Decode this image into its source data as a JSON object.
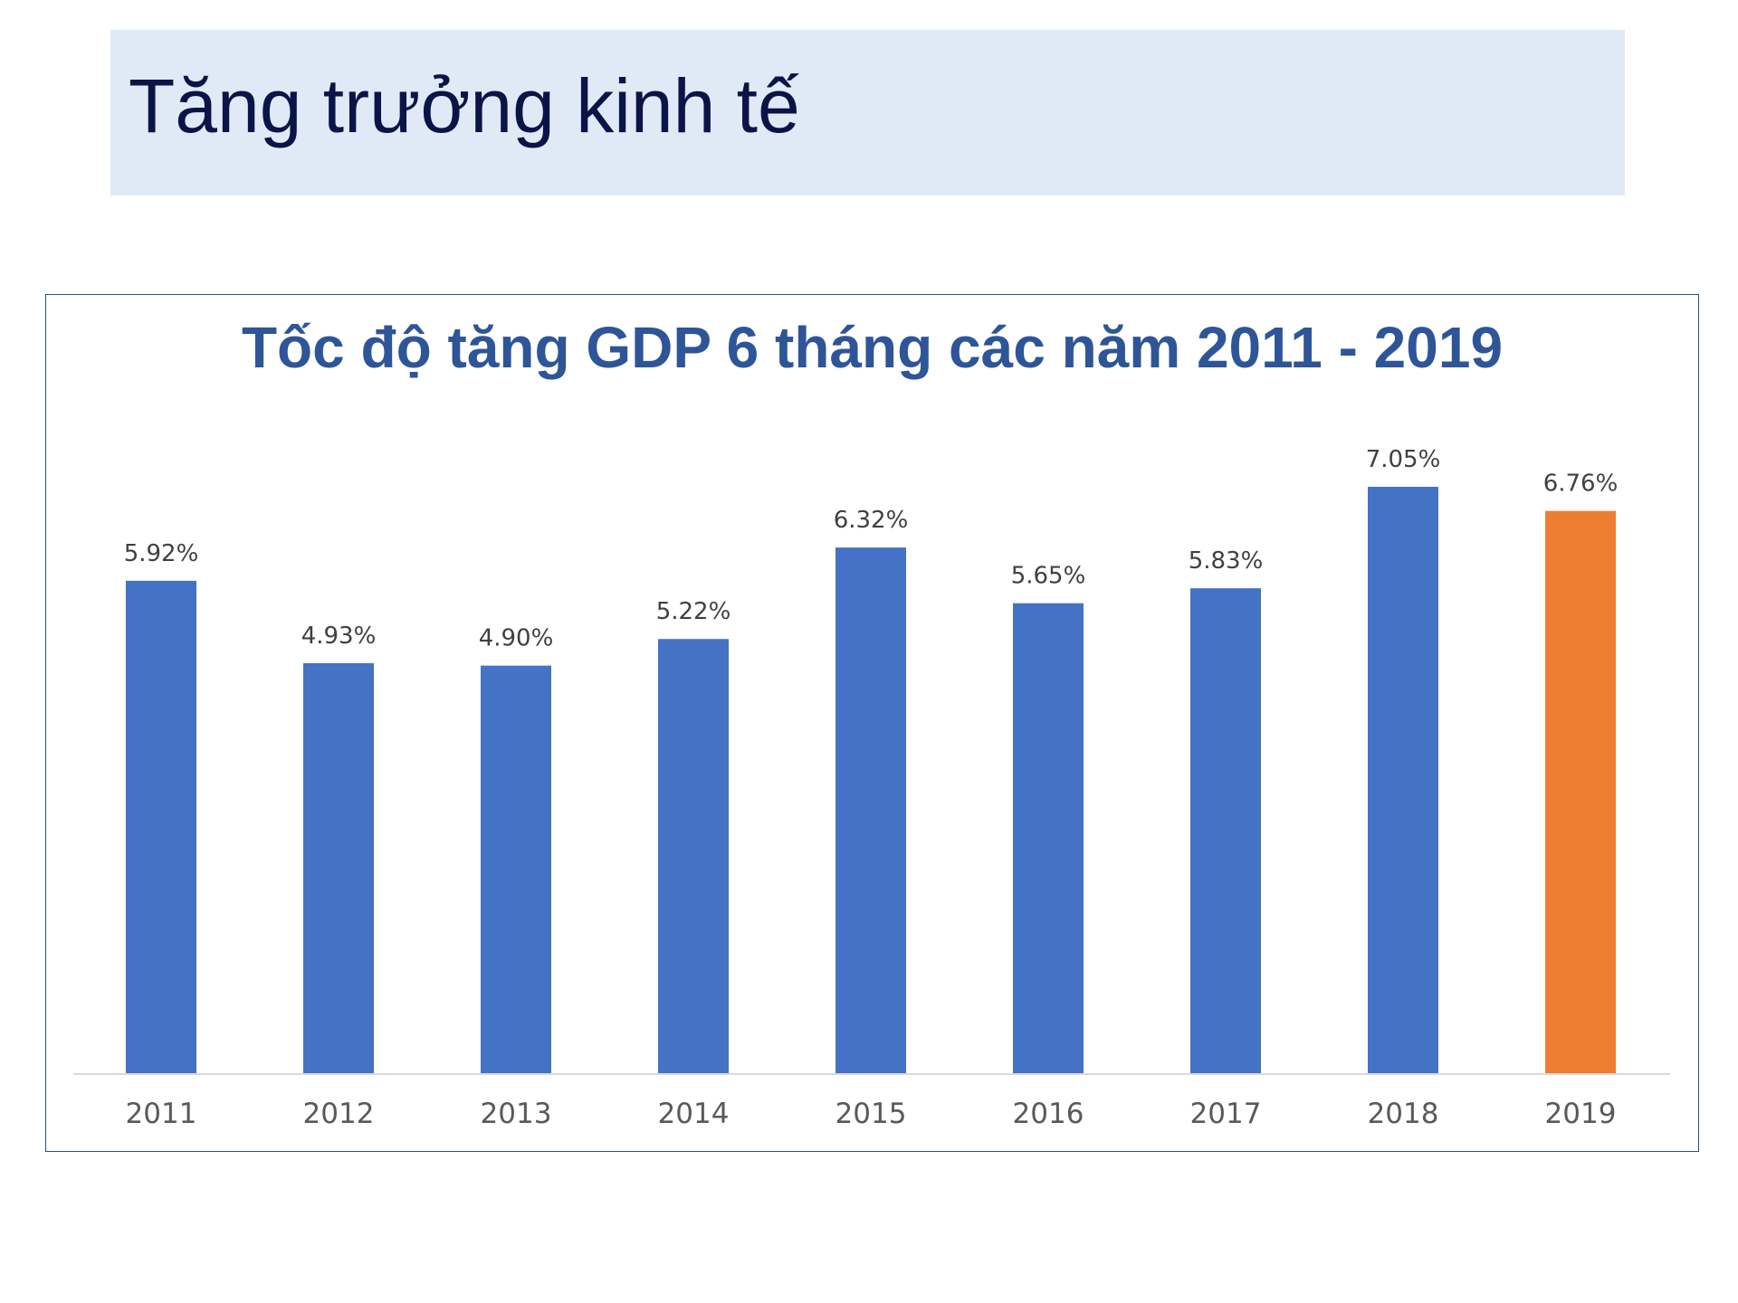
{
  "slide": {
    "title": "Tăng trưởng kinh tế"
  },
  "chart_data": {
    "type": "bar",
    "title": "Tốc độ tăng GDP 6 tháng các năm 2011 - 2019",
    "xlabel": "",
    "ylabel": "",
    "categories": [
      "2011",
      "2012",
      "2013",
      "2014",
      "2015",
      "2016",
      "2017",
      "2018",
      "2019"
    ],
    "values": [
      5.92,
      4.93,
      4.9,
      5.22,
      6.32,
      5.65,
      5.83,
      7.05,
      6.76
    ],
    "data_labels": [
      "5.92%",
      "4.93%",
      "4.90%",
      "5.22%",
      "6.32%",
      "5.65%",
      "5.83%",
      "7.05%",
      "6.76%"
    ],
    "ylim": [
      0,
      7.05
    ],
    "grid": false,
    "legend": "none",
    "colors": {
      "bar": "#4472c4",
      "highlight": "#ed7d31",
      "highlight_category": "2019",
      "baseline": "#d9d9d9"
    }
  }
}
